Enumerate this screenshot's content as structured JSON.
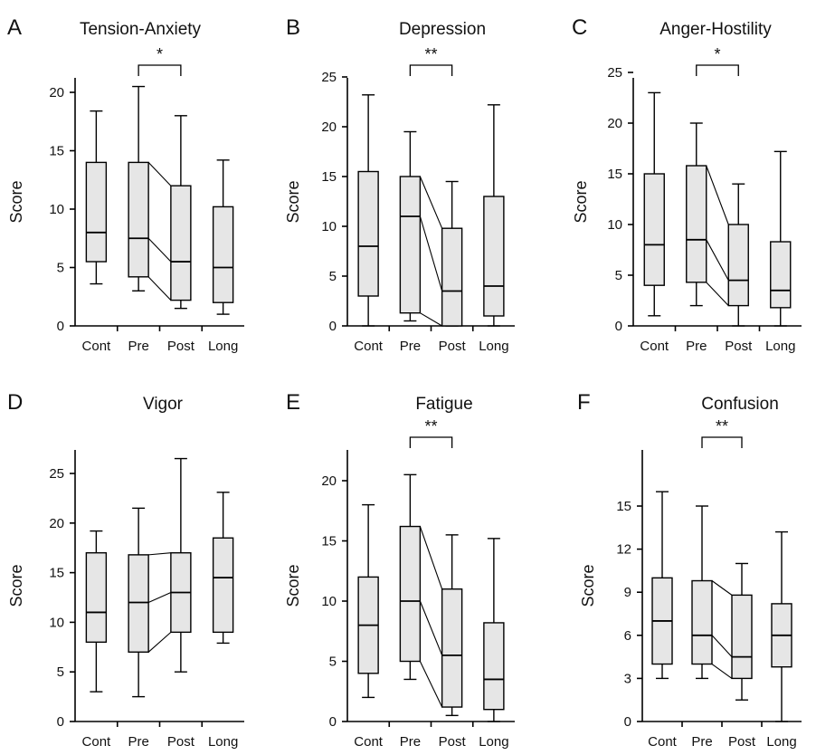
{
  "chart_data": [
    {
      "type": "box",
      "letter": "A",
      "title": "Tension-Anxiety",
      "ylabel": "Score",
      "categories": [
        "Cont",
        "Pre",
        "Post",
        "Long"
      ],
      "ylim": [
        0,
        20
      ],
      "yticks": [
        0,
        5,
        10,
        15,
        20
      ],
      "boxes": [
        {
          "min": 3.6,
          "q1": 5.5,
          "median": 8,
          "q3": 14,
          "max": 18.4
        },
        {
          "min": 3,
          "q1": 4.2,
          "median": 7.5,
          "q3": 14,
          "max": 20.5
        },
        {
          "min": 1.5,
          "q1": 2.2,
          "median": 5.5,
          "q3": 12,
          "max": 18
        },
        {
          "min": 1,
          "q1": 2,
          "median": 5,
          "q3": 10.2,
          "max": 14.2
        }
      ],
      "significance": {
        "from": 1,
        "to": 2,
        "label": "*"
      },
      "connect": [
        1,
        2
      ]
    },
    {
      "type": "box",
      "letter": "B",
      "title": "Depression",
      "ylabel": "Score",
      "categories": [
        "Cont",
        "Pre",
        "Post",
        "Long"
      ],
      "ylim": [
        0,
        25
      ],
      "yticks": [
        0,
        5,
        10,
        15,
        20,
        25
      ],
      "boxes": [
        {
          "min": 0,
          "q1": 3,
          "median": 8,
          "q3": 15.5,
          "max": 23.2
        },
        {
          "min": 0.5,
          "q1": 1.3,
          "median": 11,
          "q3": 15,
          "max": 19.5
        },
        {
          "min": 0,
          "q1": 0,
          "median": 3.5,
          "q3": 9.8,
          "max": 14.5
        },
        {
          "min": 0,
          "q1": 1,
          "median": 4,
          "q3": 13,
          "max": 22.2
        }
      ],
      "significance": {
        "from": 1,
        "to": 2,
        "label": "**"
      },
      "connect": [
        1,
        2
      ]
    },
    {
      "type": "box",
      "letter": "C",
      "title": "Anger-Hostility",
      "ylabel": "Score",
      "categories": [
        "Cont",
        "Pre",
        "Post",
        "Long"
      ],
      "ylim": [
        0,
        25
      ],
      "yticks": [
        0,
        5,
        10,
        15,
        20,
        25
      ],
      "boxes": [
        {
          "min": 1,
          "q1": 4,
          "median": 8,
          "q3": 15,
          "max": 23
        },
        {
          "min": 2,
          "q1": 4.3,
          "median": 8.5,
          "q3": 15.8,
          "max": 20
        },
        {
          "min": 0,
          "q1": 2,
          "median": 4.5,
          "q3": 10,
          "max": 14
        },
        {
          "min": 0,
          "q1": 1.8,
          "median": 3.5,
          "q3": 8.3,
          "max": 17.2
        }
      ],
      "significance": {
        "from": 1,
        "to": 2,
        "label": "*"
      },
      "connect": [
        1,
        2
      ]
    },
    {
      "type": "box",
      "letter": "D",
      "title": "Vigor",
      "ylabel": "Score",
      "categories": [
        "Cont",
        "Pre",
        "Post",
        "Long"
      ],
      "ylim": [
        0,
        25
      ],
      "yticks": [
        0,
        5,
        10,
        15,
        20,
        25
      ],
      "boxes": [
        {
          "min": 3,
          "q1": 8,
          "median": 11,
          "q3": 17,
          "max": 19.2
        },
        {
          "min": 2.5,
          "q1": 7,
          "median": 12,
          "q3": 16.8,
          "max": 21.5
        },
        {
          "min": 5,
          "q1": 9,
          "median": 13,
          "q3": 17,
          "max": 26.5
        },
        {
          "min": 7.9,
          "q1": 9,
          "median": 14.5,
          "q3": 18.5,
          "max": 23.1
        }
      ],
      "significance": null,
      "connect": [
        1,
        2
      ]
    },
    {
      "type": "box",
      "letter": "E",
      "title": "Fatigue",
      "ylabel": "Score",
      "categories": [
        "Cont",
        "Pre",
        "Post",
        "Long"
      ],
      "ylim": [
        0,
        20
      ],
      "yticks": [
        0,
        5,
        10,
        15,
        20
      ],
      "boxes": [
        {
          "min": 2,
          "q1": 4,
          "median": 8,
          "q3": 12,
          "max": 18
        },
        {
          "min": 3.5,
          "q1": 5,
          "median": 10,
          "q3": 16.2,
          "max": 20.5
        },
        {
          "min": 0.5,
          "q1": 1.2,
          "median": 5.5,
          "q3": 11,
          "max": 15.5
        },
        {
          "min": 0,
          "q1": 1,
          "median": 3.5,
          "q3": 8.2,
          "max": 15.2
        }
      ],
      "significance": {
        "from": 1,
        "to": 2,
        "label": "**"
      },
      "connect": [
        1,
        2
      ]
    },
    {
      "type": "box",
      "letter": "F",
      "title": "Confusion",
      "ylabel": "Score",
      "categories": [
        "Cont",
        "Pre",
        "Post",
        "Long"
      ],
      "ylim": [
        0,
        15
      ],
      "yticks": [
        0,
        3,
        6,
        9,
        12,
        15
      ],
      "boxes": [
        {
          "min": 3,
          "q1": 4,
          "median": 7,
          "q3": 10,
          "max": 16
        },
        {
          "min": 3,
          "q1": 4,
          "median": 6,
          "q3": 9.8,
          "max": 15
        },
        {
          "min": 1.5,
          "q1": 3,
          "median": 4.5,
          "q3": 8.8,
          "max": 11
        },
        {
          "min": 0,
          "q1": 3.8,
          "median": 6,
          "q3": 8.2,
          "max": 13.2
        }
      ],
      "significance": {
        "from": 1,
        "to": 2,
        "label": "**"
      },
      "connect": [
        1,
        2
      ]
    }
  ]
}
